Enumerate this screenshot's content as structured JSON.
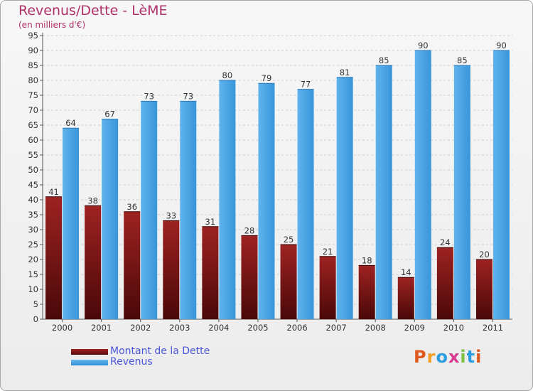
{
  "chart_data": {
    "type": "bar",
    "title": "Revenus/Dette - LèME",
    "subtitle": "(en milliers d'€)",
    "categories": [
      "2000",
      "2001",
      "2002",
      "2003",
      "2004",
      "2005",
      "2006",
      "2007",
      "2008",
      "2009",
      "2010",
      "2011"
    ],
    "series": [
      {
        "name": "Montant de la Dette",
        "values": [
          41,
          38,
          36,
          33,
          31,
          28,
          25,
          21,
          18,
          14,
          24,
          20
        ],
        "color": "#7a1515"
      },
      {
        "name": "Revenus",
        "values": [
          64,
          67,
          73,
          73,
          80,
          79,
          77,
          81,
          85,
          90,
          85,
          90
        ],
        "color": "#4ea6e4"
      }
    ],
    "ylim": [
      0,
      95
    ],
    "ytick_step": 5,
    "grid": true,
    "legend_position": "bottom-left"
  },
  "logo": {
    "letters": [
      "P",
      "r",
      "o",
      "x",
      "i",
      "t",
      "i"
    ],
    "colors": [
      "#e05a1f",
      "#f0a020",
      "#2a9de0",
      "#d93a8e",
      "#7cc242",
      "#2a9de0",
      "#e05a1f"
    ]
  }
}
